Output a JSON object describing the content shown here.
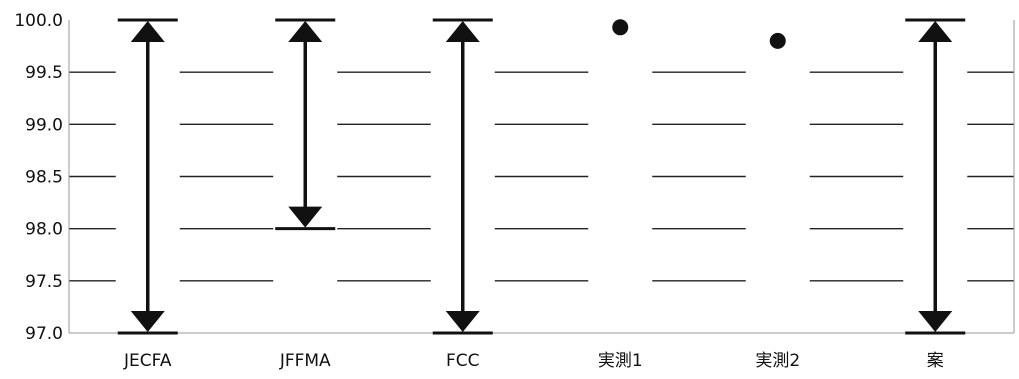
{
  "chart_data": {
    "type": "range",
    "title": "",
    "xlabel": "",
    "ylabel": "",
    "ylim": [
      97.0,
      100.0
    ],
    "yticks": [
      "100.0",
      "99.5",
      "99.0",
      "98.5",
      "98.0",
      "97.5",
      "97.0"
    ],
    "grid": true,
    "legend": "none",
    "categories": [
      "JECFA",
      "JFFMA",
      "FCC",
      "実測1",
      "実測2",
      "案"
    ],
    "ranges": [
      {
        "category": "JECFA",
        "low": 97.0,
        "high": 100.0
      },
      {
        "category": "JFFMA",
        "low": 98.0,
        "high": 100.0
      },
      {
        "category": "FCC",
        "low": 97.0,
        "high": 100.0
      },
      {
        "category": "案",
        "low": 97.0,
        "high": 100.0
      }
    ],
    "points": [
      {
        "category": "実測1",
        "value": 99.93
      },
      {
        "category": "実測2",
        "value": 99.8
      }
    ],
    "colors": {
      "mark": "#111111",
      "grid": "#222222",
      "axis": "#999999"
    }
  }
}
